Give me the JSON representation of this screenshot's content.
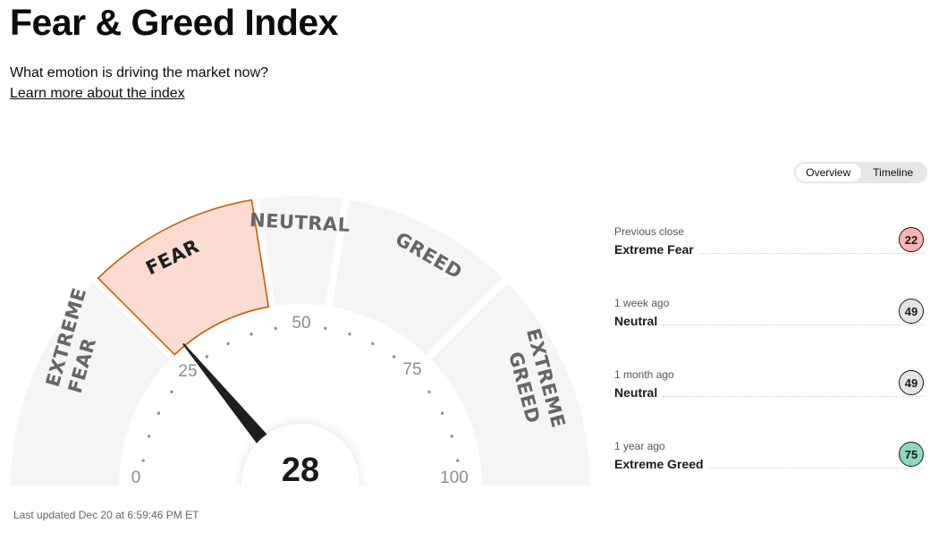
{
  "header": {
    "title": "Fear & Greed Index",
    "subtitle": "What emotion is driving the market now?",
    "learn_more": "Learn more about the index"
  },
  "view_toggle": {
    "options": [
      "Overview",
      "Timeline"
    ],
    "selected": "Overview"
  },
  "gauge": {
    "score": "28",
    "score_value": 28,
    "active_zone": "FEAR",
    "zones": [
      {
        "line1": "EXTREME",
        "line2": "FEAR"
      },
      {
        "line1": "FEAR"
      },
      {
        "line1": "NEUTRAL"
      },
      {
        "line1": "GREED"
      },
      {
        "line1": "EXTREME",
        "line2": "GREED"
      }
    ],
    "ticks": [
      "0",
      "25",
      "50",
      "75",
      "100"
    ],
    "colors": {
      "active_fill": "#fcdcd0",
      "active_stroke": "#c25e05",
      "zone_fill": "#f5f5f5",
      "needle": "#1f1f1f"
    }
  },
  "last_updated": "Last updated Dec 20 at 6:59:46 PM ET",
  "history": [
    {
      "caption": "Previous close",
      "label": "Extreme Fear",
      "value": "22",
      "color": "#f9b3b3"
    },
    {
      "caption": "1 week ago",
      "label": "Neutral",
      "value": "49",
      "color": "#e3e3e3"
    },
    {
      "caption": "1 month ago",
      "label": "Neutral",
      "value": "49",
      "color": "#e3e3e3"
    },
    {
      "caption": "1 year ago",
      "label": "Extreme Greed",
      "value": "75",
      "color": "#8fd8be"
    }
  ]
}
